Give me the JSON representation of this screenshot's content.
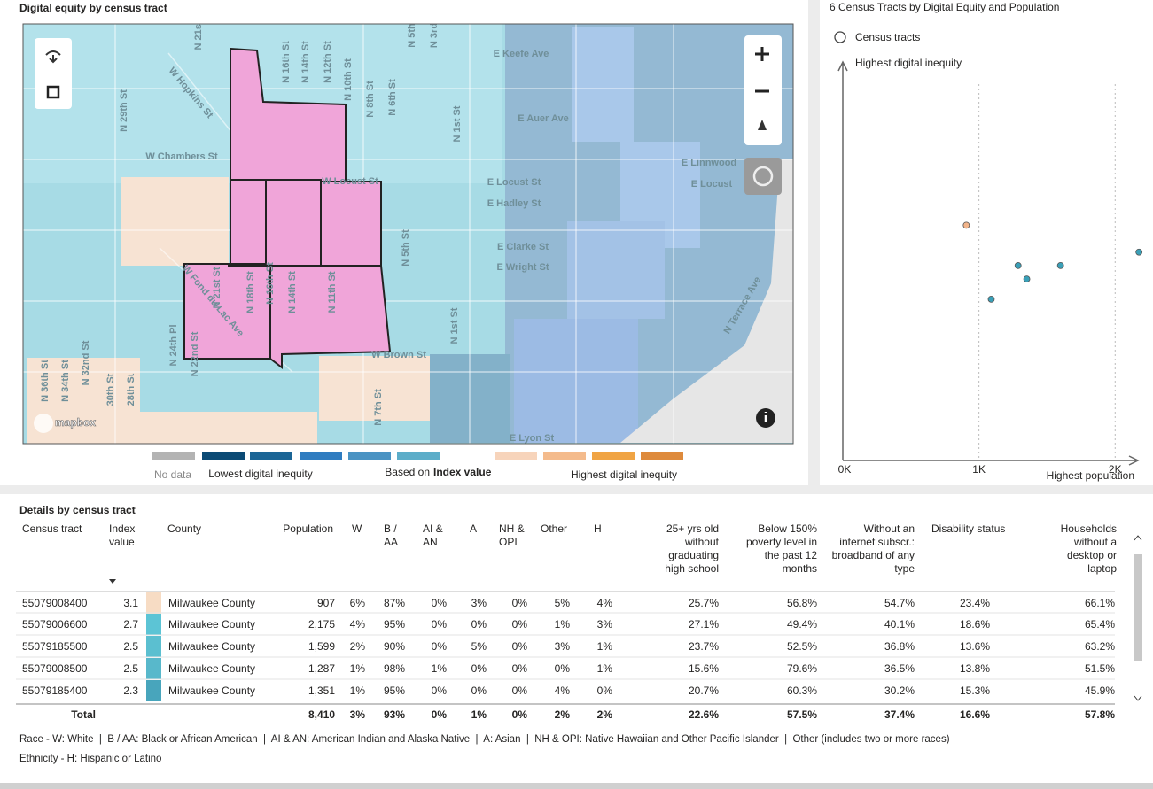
{
  "map": {
    "title": "Digital equity by census tract",
    "labels": [
      "N 21st",
      "W Hopkins St",
      "N 16th St",
      "N 14th St",
      "N 12th St",
      "N 10th St",
      "N 5th",
      "N 3rd",
      "E Keefe Ave",
      "N 29th St",
      "N 8th St",
      "N 6th St",
      "N 1st St",
      "E Auer Ave",
      "W Chambers St",
      "W Locust St",
      "E Locust St",
      "E Hadley St",
      "E Linnwood",
      "E Locust",
      "W Fond du Lac Ave",
      "N 21st St",
      "N 18th St",
      "N 16th St",
      "N 14th St",
      "N 11th St",
      "N 5th St",
      "E Clarke St",
      "E Wright St",
      "N 1st St",
      "N Terrace Ave",
      "W Brown St",
      "N 24th Pl",
      "N 22nd St",
      "N 36th St",
      "N 34th St",
      "N 32nd St",
      "30th St",
      "28th St",
      "N 7th St",
      "E Lyon St"
    ],
    "attribution": "mapbox",
    "legend": {
      "no_data": "No data",
      "low": "Lowest digital inequity",
      "based_on": "Based on",
      "measure": "Index value",
      "high": "Highest digital inequity",
      "colors": [
        "#b3b3b3",
        "#0b4a75",
        "#1b6596",
        "#2f7cc0",
        "#4a93c3",
        "#5cadc9",
        "#f7d4bb",
        "#f4bb8c",
        "#f0a444",
        "#de8a3c"
      ]
    }
  },
  "chart_data": {
    "type": "scatter",
    "title": "6 Census Tracts by Digital Equity and Population",
    "legend": "Census tracts",
    "y_axis_label": "Highest digital inequity",
    "x_axis_label": "Highest population",
    "x": [
      907,
      2175,
      1599,
      1287,
      1351,
      1090
    ],
    "y": [
      3.1,
      2.7,
      2.5,
      2.5,
      2.3,
      2.0
    ],
    "colors": [
      "#f2b48a",
      "#3aa0b8",
      "#3aa0b8",
      "#3aa0b8",
      "#3aa0b8",
      "#3aa0b8"
    ],
    "xlim": [
      0,
      2200
    ],
    "ylim": [
      -0.4,
      5.2
    ],
    "xticks": [
      {
        "value": 0,
        "label": "0K"
      },
      {
        "value": 1000,
        "label": "1K"
      },
      {
        "value": 2000,
        "label": "2K"
      }
    ]
  },
  "table": {
    "title": "Details by census tract",
    "headers": [
      "Census tract",
      "Index value",
      "County",
      "Population",
      "W",
      "B / AA",
      "AI & AN",
      "A",
      "NH & OPI",
      "Other",
      "H",
      "25+ yrs old without graduating high school",
      "Below 150% poverty level in the past 12 months",
      "Without an internet subscr.: broadband of any type",
      "Disability status",
      "Households without a desktop or laptop"
    ],
    "rows": [
      [
        "55079008400",
        "3.1",
        "Milwaukee County",
        "907",
        "6%",
        "87%",
        "0%",
        "3%",
        "0%",
        "5%",
        "4%",
        "25.7%",
        "56.8%",
        "54.7%",
        "23.4%",
        "66.1%"
      ],
      [
        "55079006600",
        "2.7",
        "Milwaukee County",
        "2,175",
        "4%",
        "95%",
        "0%",
        "0%",
        "0%",
        "1%",
        "3%",
        "27.1%",
        "49.4%",
        "40.1%",
        "18.6%",
        "65.4%"
      ],
      [
        "55079185500",
        "2.5",
        "Milwaukee County",
        "1,599",
        "2%",
        "90%",
        "0%",
        "5%",
        "0%",
        "3%",
        "1%",
        "23.7%",
        "52.5%",
        "36.8%",
        "13.6%",
        "63.2%"
      ],
      [
        "55079008500",
        "2.5",
        "Milwaukee County",
        "1,287",
        "1%",
        "98%",
        "1%",
        "0%",
        "0%",
        "0%",
        "1%",
        "15.6%",
        "79.6%",
        "36.5%",
        "13.8%",
        "51.5%"
      ],
      [
        "55079185400",
        "2.3",
        "Milwaukee County",
        "1,351",
        "1%",
        "95%",
        "0%",
        "0%",
        "0%",
        "4%",
        "0%",
        "20.7%",
        "60.3%",
        "30.2%",
        "15.3%",
        "45.9%"
      ]
    ],
    "swatches": [
      "#f7dcc4",
      "#5cc4d5",
      "#5bbfd0",
      "#58b8cb",
      "#48a5bc"
    ],
    "total": {
      "label": "Total",
      "values": [
        "8,410",
        "3%",
        "93%",
        "0%",
        "1%",
        "0%",
        "2%",
        "2%",
        "22.6%",
        "57.5%",
        "37.4%",
        "16.6%",
        "57.8%"
      ]
    },
    "notes": [
      "Race - W: White  |  B / AA: Black or African American  |  AI & AN: American Indian and Alaska Native  |  A: Asian  |  NH & OPI: Native Hawaiian and Other Pacific Islander  |  Other (includes two or more races)",
      "Ethnicity - H: Hispanic or Latino"
    ]
  }
}
